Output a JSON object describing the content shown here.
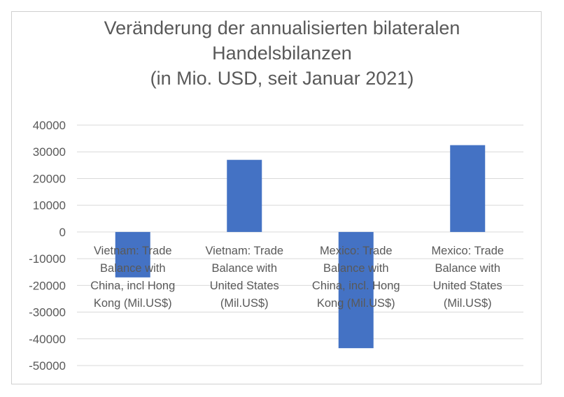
{
  "chart_data": {
    "type": "bar",
    "title_lines": [
      "Veränderung der annualisierten bilateralen",
      "Handelsbilanzen",
      "(in Mio. USD, seit Januar 2021)"
    ],
    "categories": [
      [
        "Vietnam: Trade",
        "Balance with",
        "China, incl Hong",
        "Kong (Mil.US$)"
      ],
      [
        "Vietnam: Trade",
        "Balance with",
        "United States",
        "(Mil.US$)"
      ],
      [
        "Mexico: Trade",
        "Balance with",
        "China, incl. Hong",
        "Kong (Mil.US$)"
      ],
      [
        "Mexico: Trade",
        "Balance with",
        "United States",
        "(Mil.US$)"
      ]
    ],
    "values": [
      -17000,
      27000,
      -43500,
      32500
    ],
    "ylim": [
      -50000,
      40000
    ],
    "yticks": [
      "40000",
      "30000",
      "20000",
      "10000",
      "0",
      "-10000",
      "-20000",
      "-30000",
      "-40000",
      "-50000"
    ],
    "bar_color": "#4472c4",
    "grid": true,
    "legend": "none"
  }
}
